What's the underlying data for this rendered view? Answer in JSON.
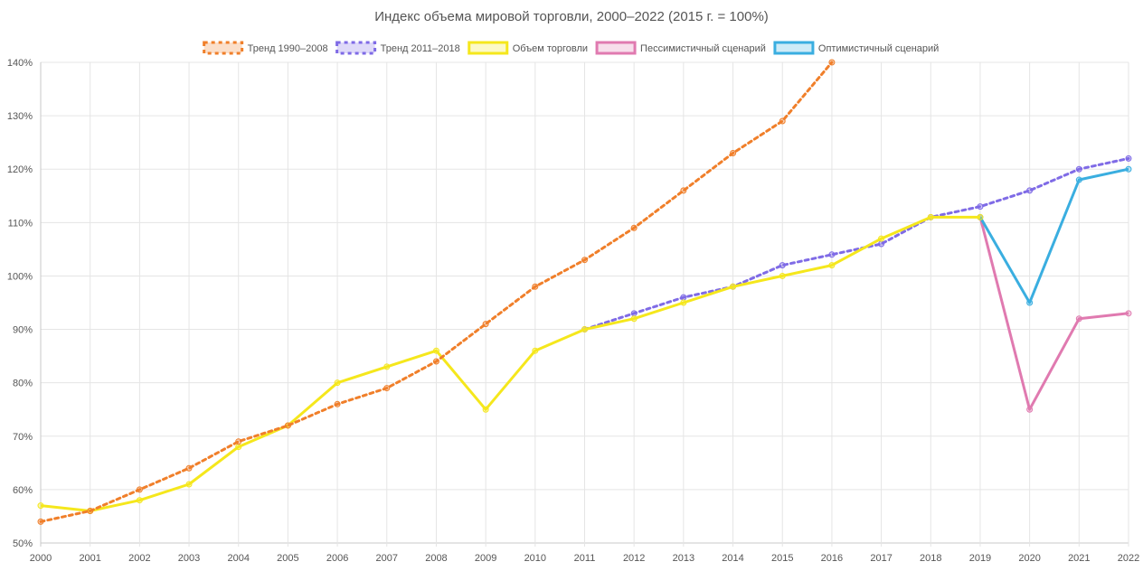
{
  "chart_data": {
    "type": "line",
    "title": "Индекс объема мировой торговли, 2000–2022 (2015 г. = 100%)",
    "xlabel": "",
    "ylabel": "",
    "ylim": [
      50,
      140
    ],
    "y_ticks": [
      "50%",
      "60%",
      "70%",
      "80%",
      "90%",
      "100%",
      "110%",
      "120%",
      "130%",
      "140%"
    ],
    "y_tick_values": [
      50,
      60,
      70,
      80,
      90,
      100,
      110,
      120,
      130,
      140
    ],
    "categories": [
      "2000",
      "2001",
      "2002",
      "2003",
      "2004",
      "2005",
      "2006",
      "2007",
      "2008",
      "2009",
      "2010",
      "2011",
      "2012",
      "2013",
      "2014",
      "2015",
      "2016",
      "2017",
      "2018",
      "2019",
      "2020",
      "2021",
      "2022"
    ],
    "grid": true,
    "legend_position": "top",
    "series": [
      {
        "name": "Тренд 1990–2008",
        "color": "#f07f2a",
        "style": "dashed",
        "values": [
          54,
          56,
          60,
          64,
          69,
          72,
          76,
          79,
          84,
          91,
          98,
          103,
          109,
          116,
          123,
          129,
          140,
          null,
          null,
          null,
          null,
          null,
          null
        ]
      },
      {
        "name": "Тренд 2011–2018",
        "color": "#7f6be6",
        "style": "dashed",
        "values": [
          null,
          null,
          null,
          null,
          null,
          null,
          null,
          null,
          null,
          null,
          null,
          90,
          93,
          96,
          98,
          102,
          104,
          106,
          111,
          113,
          116,
          120,
          122
        ]
      },
      {
        "name": "Объем торговли",
        "color": "#f5e71c",
        "style": "solid",
        "values": [
          57,
          56,
          58,
          61,
          68,
          72,
          80,
          83,
          86,
          75,
          86,
          90,
          92,
          95,
          98,
          100,
          102,
          107,
          111,
          111,
          null,
          null,
          null
        ]
      },
      {
        "name": "Пессимистичный сценарий",
        "color": "#e07ab0",
        "style": "solid",
        "values": [
          null,
          null,
          null,
          null,
          null,
          null,
          null,
          null,
          null,
          null,
          null,
          null,
          null,
          null,
          null,
          null,
          null,
          null,
          null,
          111,
          75,
          92,
          93
        ]
      },
      {
        "name": "Оптимистичный сценарий",
        "color": "#3aaee0",
        "style": "solid",
        "values": [
          null,
          null,
          null,
          null,
          null,
          null,
          null,
          null,
          null,
          null,
          null,
          null,
          null,
          null,
          null,
          null,
          null,
          null,
          null,
          111,
          95,
          118,
          120
        ]
      }
    ]
  }
}
